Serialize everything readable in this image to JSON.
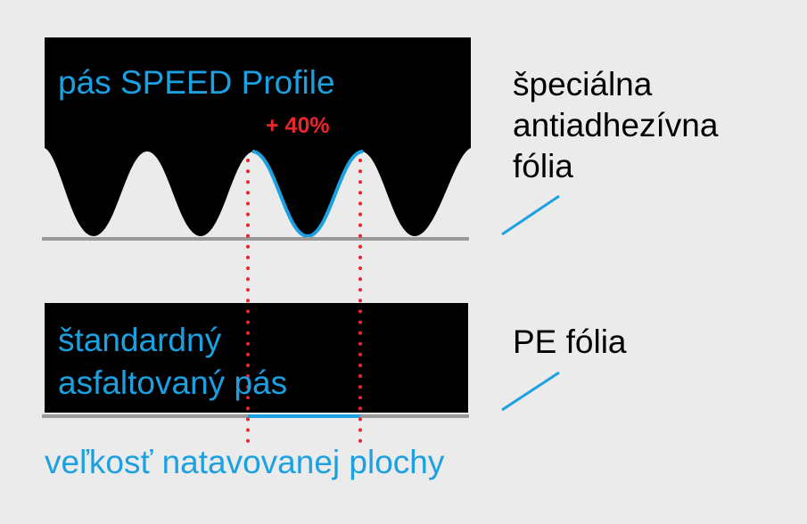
{
  "top_label": "pás SPEED Profile",
  "increase_label": "+ 40%",
  "top_film_label": [
    "špeciálna",
    "antiadhezívna",
    "fólia"
  ],
  "bottom_label": [
    "štandardný",
    "asfaltovaný pás"
  ],
  "bottom_film_label": "PE fólia",
  "caption": "veľkosť natavovanej plochy"
}
